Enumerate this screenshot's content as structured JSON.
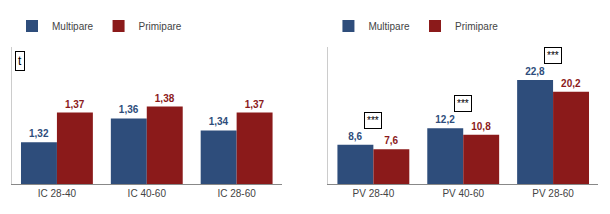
{
  "chart_data": [
    {
      "type": "bar",
      "categories": [
        "IC 28-40",
        "IC 40-60",
        "IC 28-60"
      ],
      "series": [
        {
          "name": "Multipare",
          "color": "#2E4D7B",
          "values": [
            1.32,
            1.36,
            1.34
          ],
          "value_labels": [
            "1,32",
            "1,36",
            "1,34"
          ]
        },
        {
          "name": "Primipare",
          "color": "#8B1A1A",
          "values": [
            1.37,
            1.38,
            1.37
          ],
          "value_labels": [
            "1,37",
            "1,38",
            "1,37"
          ]
        }
      ],
      "ylim": [
        1.25,
        1.48
      ],
      "annotations": [
        "t"
      ],
      "data_labels": true,
      "tick_labels": "x",
      "grid": false,
      "legend": "top left"
    },
    {
      "type": "bar",
      "categories": [
        "PV 28-40",
        "PV 40-60",
        "PV 28-60"
      ],
      "series": [
        {
          "name": "Multipare",
          "color": "#2E4D7B",
          "values": [
            8.6,
            12.2,
            22.8
          ],
          "value_labels": [
            "8,6",
            "12,2",
            "22,8"
          ]
        },
        {
          "name": "Primipare",
          "color": "#8B1A1A",
          "values": [
            7.6,
            10.8,
            20.2
          ],
          "value_labels": [
            "7,6",
            "10,8",
            "20,2"
          ]
        }
      ],
      "ylim": [
        0,
        30
      ],
      "annotations": [
        "***",
        "***",
        "***"
      ],
      "data_labels": true,
      "tick_labels": "x",
      "grid": false,
      "legend": "top left"
    }
  ]
}
